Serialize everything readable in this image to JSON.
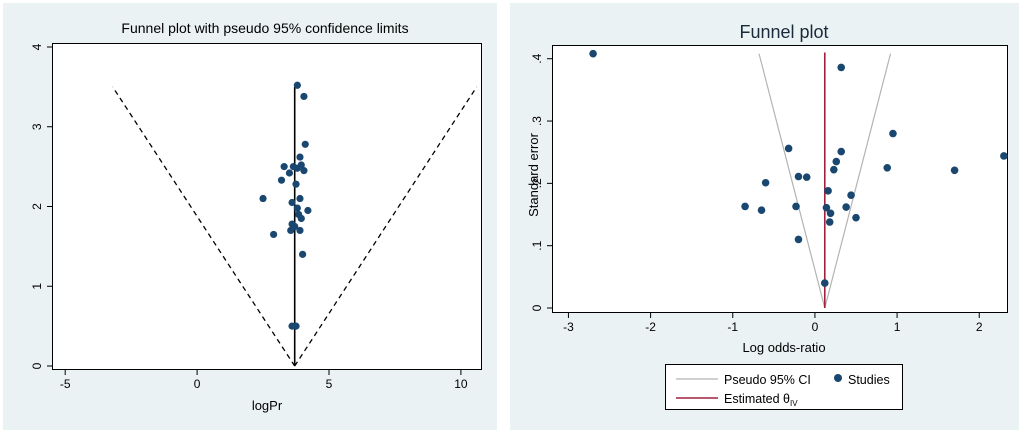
{
  "chart_data": [
    {
      "type": "scatter",
      "title": "Funnel plot with pseudo 95% confidence limits",
      "xlabel": "logPr",
      "ylabel": "",
      "xlim": [
        -5.5,
        10.8
      ],
      "ylim": [
        4.05,
        -0.05
      ],
      "y_reversed": true,
      "xticks": [
        -5,
        0,
        5,
        10
      ],
      "yticks": [
        0,
        1,
        2,
        3,
        4
      ],
      "estimate": 3.7,
      "ci_lines": [
        {
          "name": "lower",
          "points": [
            [
              3.7,
              0
            ],
            [
              -3.2,
              3.5
            ]
          ]
        },
        {
          "name": "upper",
          "points": [
            [
              3.7,
              0
            ],
            [
              10.6,
              3.5
            ]
          ]
        }
      ],
      "points": [
        [
          3.6,
          0.5
        ],
        [
          3.75,
          0.5
        ],
        [
          4.0,
          1.4
        ],
        [
          2.9,
          1.65
        ],
        [
          3.55,
          1.7
        ],
        [
          3.9,
          1.7
        ],
        [
          3.6,
          1.78
        ],
        [
          3.7,
          1.75
        ],
        [
          3.95,
          1.85
        ],
        [
          3.85,
          1.9
        ],
        [
          4.2,
          1.95
        ],
        [
          3.8,
          1.98
        ],
        [
          3.6,
          2.05
        ],
        [
          2.5,
          2.1
        ],
        [
          3.9,
          2.1
        ],
        [
          3.75,
          2.28
        ],
        [
          3.2,
          2.33
        ],
        [
          3.5,
          2.42
        ],
        [
          3.3,
          2.5
        ],
        [
          3.8,
          2.48
        ],
        [
          3.65,
          2.5
        ],
        [
          4.05,
          2.45
        ],
        [
          3.95,
          2.52
        ],
        [
          3.9,
          2.62
        ],
        [
          4.1,
          2.78
        ],
        [
          4.05,
          3.38
        ],
        [
          3.8,
          3.52
        ]
      ]
    },
    {
      "type": "scatter",
      "title": "Funnel plot",
      "xlabel": "Log odds-ratio",
      "ylabel": "Standard error",
      "xlim": [
        -3.2,
        2.35
      ],
      "ylim": [
        0.422,
        -0.008
      ],
      "y_reversed": true,
      "xticks": [
        -3,
        -2,
        -1,
        0,
        1,
        2
      ],
      "yticks": [
        0,
        0.1,
        0.2,
        0.3,
        0.4
      ],
      "ytick_labels": [
        "0",
        ".1",
        ".2",
        ".3",
        ".4"
      ],
      "estimate": 0.12,
      "estimate_y_range": [
        0,
        0.41
      ],
      "ci_lines": [
        {
          "name": "lower",
          "points": [
            [
              0.12,
              0
            ],
            [
              -0.68,
              0.408
            ]
          ]
        },
        {
          "name": "upper",
          "points": [
            [
              0.12,
              0
            ],
            [
              0.92,
              0.408
            ]
          ]
        }
      ],
      "points": [
        [
          0.12,
          0.04
        ],
        [
          -0.2,
          0.11
        ],
        [
          0.18,
          0.138
        ],
        [
          0.5,
          0.145
        ],
        [
          0.19,
          0.152
        ],
        [
          -0.65,
          0.157
        ],
        [
          0.14,
          0.161
        ],
        [
          -0.85,
          0.163
        ],
        [
          0.38,
          0.162
        ],
        [
          -0.23,
          0.163
        ],
        [
          0.44,
          0.181
        ],
        [
          0.16,
          0.188
        ],
        [
          -0.6,
          0.201
        ],
        [
          -0.1,
          0.21
        ],
        [
          -0.2,
          0.211
        ],
        [
          0.23,
          0.222
        ],
        [
          1.7,
          0.221
        ],
        [
          0.88,
          0.225
        ],
        [
          0.26,
          0.235
        ],
        [
          2.3,
          0.244
        ],
        [
          0.32,
          0.251
        ],
        [
          -0.32,
          0.256
        ],
        [
          0.95,
          0.28
        ],
        [
          0.32,
          0.386
        ],
        [
          -2.7,
          0.408
        ]
      ],
      "legend": [
        {
          "label": "Pseudo 95% CI",
          "kind": "line",
          "color": "#b3b3b3"
        },
        {
          "label": "Studies",
          "kind": "marker",
          "color": "#1a476f"
        },
        {
          "label": "Estimated θ",
          "subscript": "IV",
          "kind": "line",
          "color": "#a0203c"
        }
      ],
      "legend_position": "bottom"
    }
  ],
  "colors": {
    "marker": "#1a476f",
    "estimate_red": "#a0203c",
    "ci_gray": "#b3b3b3",
    "panel_bg": "#eaf2f3"
  }
}
